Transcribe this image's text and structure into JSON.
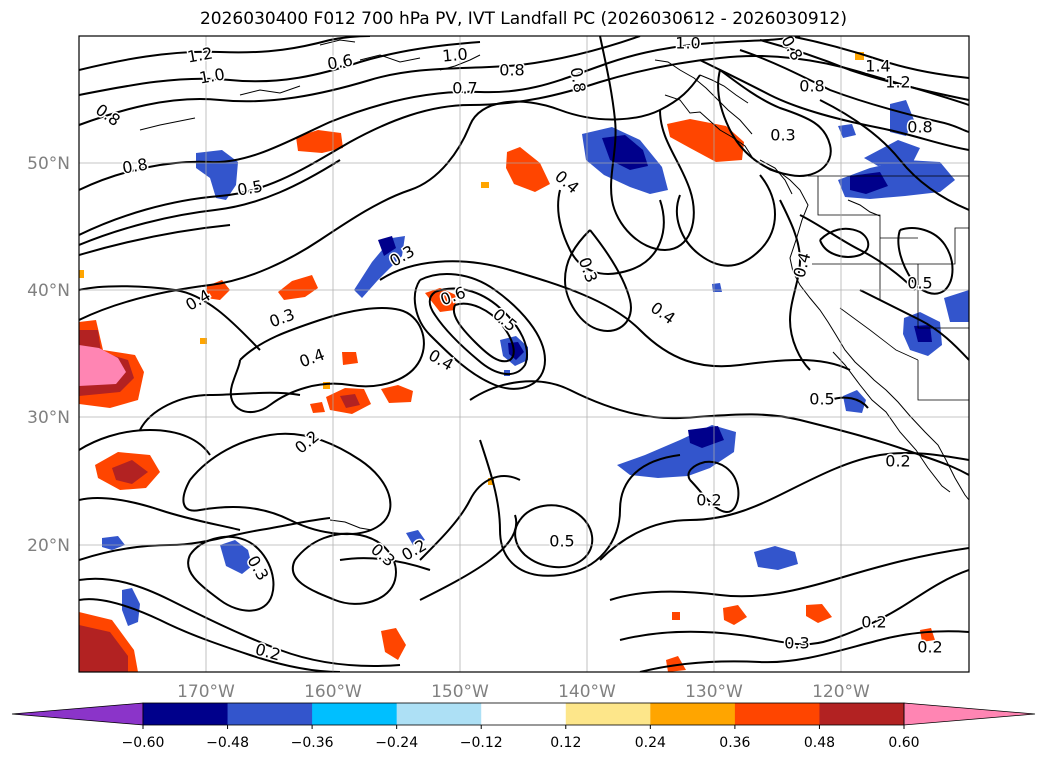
{
  "title": "2026030400 F012 700 hPa PV, IVT Landfall PC (2026030612 - 2026030912)",
  "map": {
    "lon_labels": [
      "170°W",
      "160°W",
      "150°W",
      "140°W",
      "130°W",
      "120°W"
    ],
    "lat_labels": [
      "50°N",
      "40°N",
      "30°N",
      "20°N"
    ],
    "grid": true,
    "axis_label_color": "#808080",
    "contour_color": "#000000",
    "contour_labels": [
      "1.2",
      "1.0",
      "0.6",
      "1.0",
      "0.8",
      "1.0",
      "0.8",
      "1.4",
      "1.2",
      "0.8",
      "0.8",
      "0.7",
      "0.8",
      "0.8",
      "0.3",
      "0.8",
      "0.5",
      "0.4",
      "0.3",
      "0.3",
      "0.4",
      "0.6",
      "0.5",
      "0.4",
      "0.3",
      "0.4",
      "0.4",
      "0.5",
      "0.4",
      "0.2",
      "0.5",
      "0.2",
      "0.2",
      "0.5",
      "0.3",
      "0.2",
      "0.3",
      "0.2",
      "0.2",
      "0.3",
      "0.2"
    ]
  },
  "colorbar": {
    "colors": [
      "#8b34c9",
      "#00008b",
      "#3355cc",
      "#00bfff",
      "#ade0f5",
      "#ffffff",
      "#fde68a",
      "#ffa500",
      "#ff4500",
      "#b22222",
      "#ff85b3"
    ],
    "tick_labels": [
      "−0.60",
      "−0.48",
      "−0.36",
      "−0.24",
      "−0.12",
      "0.12",
      "0.24",
      "0.36",
      "0.48",
      "0.60"
    ],
    "extend": "both"
  }
}
